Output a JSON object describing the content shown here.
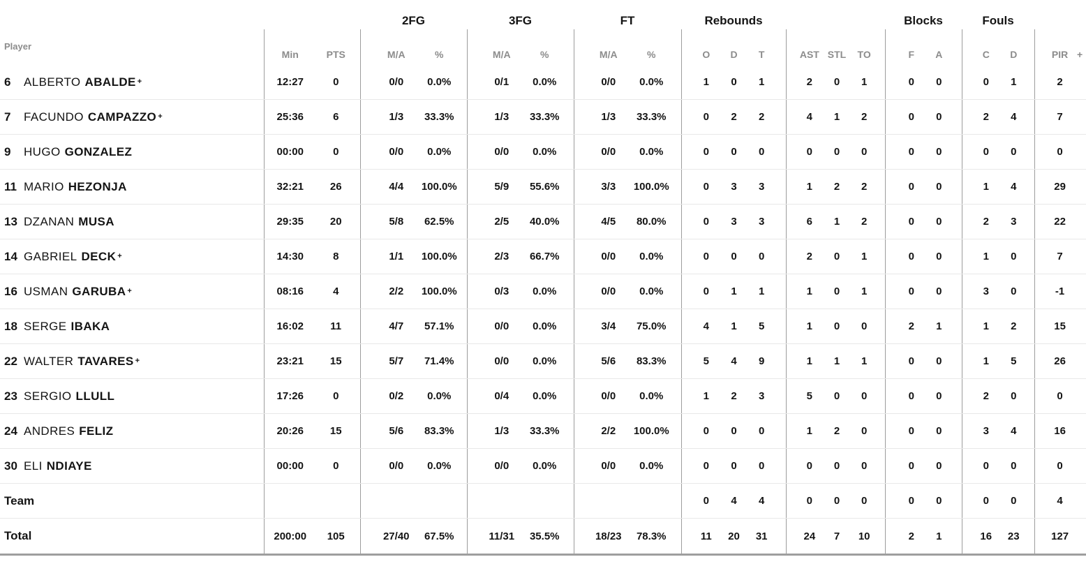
{
  "table": {
    "header": {
      "player_label": "Player",
      "group_labels": [
        "",
        "2FG",
        "3FG",
        "FT",
        "Rebounds",
        "",
        "Blocks",
        "Fouls",
        ""
      ],
      "columns": [
        "Min",
        "PTS",
        "M/A",
        "%",
        "M/A",
        "%",
        "M/A",
        "%",
        "O",
        "D",
        "T",
        "AST",
        "STL",
        "TO",
        "F",
        "A",
        "C",
        "D",
        "PIR",
        "+"
      ]
    },
    "starter_mark": "+",
    "rows": [
      {
        "type": "player",
        "number": "6",
        "first": "ALBERTO",
        "last": "ABALDE",
        "starter": true,
        "stats": [
          "12:27",
          "0",
          "0/0",
          "0.0%",
          "0/1",
          "0.0%",
          "0/0",
          "0.0%",
          "1",
          "0",
          "1",
          "2",
          "0",
          "1",
          "0",
          "0",
          "0",
          "1",
          "2",
          ""
        ]
      },
      {
        "type": "player",
        "number": "7",
        "first": "FACUNDO",
        "last": "CAMPAZZO",
        "starter": true,
        "stats": [
          "25:36",
          "6",
          "1/3",
          "33.3%",
          "1/3",
          "33.3%",
          "1/3",
          "33.3%",
          "0",
          "2",
          "2",
          "4",
          "1",
          "2",
          "0",
          "0",
          "2",
          "4",
          "7",
          ""
        ]
      },
      {
        "type": "player",
        "number": "9",
        "first": "HUGO",
        "last": "GONZALEZ",
        "starter": false,
        "stats": [
          "00:00",
          "0",
          "0/0",
          "0.0%",
          "0/0",
          "0.0%",
          "0/0",
          "0.0%",
          "0",
          "0",
          "0",
          "0",
          "0",
          "0",
          "0",
          "0",
          "0",
          "0",
          "0",
          ""
        ]
      },
      {
        "type": "player",
        "number": "11",
        "first": "MARIO",
        "last": "HEZONJA",
        "starter": false,
        "stats": [
          "32:21",
          "26",
          "4/4",
          "100.0%",
          "5/9",
          "55.6%",
          "3/3",
          "100.0%",
          "0",
          "3",
          "3",
          "1",
          "2",
          "2",
          "0",
          "0",
          "1",
          "4",
          "29",
          ""
        ]
      },
      {
        "type": "player",
        "number": "13",
        "first": "DZANAN",
        "last": "MUSA",
        "starter": false,
        "stats": [
          "29:35",
          "20",
          "5/8",
          "62.5%",
          "2/5",
          "40.0%",
          "4/5",
          "80.0%",
          "0",
          "3",
          "3",
          "6",
          "1",
          "2",
          "0",
          "0",
          "2",
          "3",
          "22",
          ""
        ]
      },
      {
        "type": "player",
        "number": "14",
        "first": "GABRIEL",
        "last": "DECK",
        "starter": true,
        "stats": [
          "14:30",
          "8",
          "1/1",
          "100.0%",
          "2/3",
          "66.7%",
          "0/0",
          "0.0%",
          "0",
          "0",
          "0",
          "2",
          "0",
          "1",
          "0",
          "0",
          "1",
          "0",
          "7",
          ""
        ]
      },
      {
        "type": "player",
        "number": "16",
        "first": "USMAN",
        "last": "GARUBA",
        "starter": true,
        "stats": [
          "08:16",
          "4",
          "2/2",
          "100.0%",
          "0/3",
          "0.0%",
          "0/0",
          "0.0%",
          "0",
          "1",
          "1",
          "1",
          "0",
          "1",
          "0",
          "0",
          "3",
          "0",
          "-1",
          ""
        ]
      },
      {
        "type": "player",
        "number": "18",
        "first": "SERGE",
        "last": "IBAKA",
        "starter": false,
        "stats": [
          "16:02",
          "11",
          "4/7",
          "57.1%",
          "0/0",
          "0.0%",
          "3/4",
          "75.0%",
          "4",
          "1",
          "5",
          "1",
          "0",
          "0",
          "2",
          "1",
          "1",
          "2",
          "15",
          ""
        ]
      },
      {
        "type": "player",
        "number": "22",
        "first": "WALTER",
        "last": "TAVARES",
        "starter": true,
        "stats": [
          "23:21",
          "15",
          "5/7",
          "71.4%",
          "0/0",
          "0.0%",
          "5/6",
          "83.3%",
          "5",
          "4",
          "9",
          "1",
          "1",
          "1",
          "0",
          "0",
          "1",
          "5",
          "26",
          ""
        ]
      },
      {
        "type": "player",
        "number": "23",
        "first": "SERGIO",
        "last": "LLULL",
        "starter": false,
        "stats": [
          "17:26",
          "0",
          "0/2",
          "0.0%",
          "0/4",
          "0.0%",
          "0/0",
          "0.0%",
          "1",
          "2",
          "3",
          "5",
          "0",
          "0",
          "0",
          "0",
          "2",
          "0",
          "0",
          ""
        ]
      },
      {
        "type": "player",
        "number": "24",
        "first": "ANDRES",
        "last": "FELIZ",
        "starter": false,
        "stats": [
          "20:26",
          "15",
          "5/6",
          "83.3%",
          "1/3",
          "33.3%",
          "2/2",
          "100.0%",
          "0",
          "0",
          "0",
          "1",
          "2",
          "0",
          "0",
          "0",
          "3",
          "4",
          "16",
          ""
        ]
      },
      {
        "type": "player",
        "number": "30",
        "first": "ELI",
        "last": "NDIAYE",
        "starter": false,
        "stats": [
          "00:00",
          "0",
          "0/0",
          "0.0%",
          "0/0",
          "0.0%",
          "0/0",
          "0.0%",
          "0",
          "0",
          "0",
          "0",
          "0",
          "0",
          "0",
          "0",
          "0",
          "0",
          "0",
          ""
        ]
      },
      {
        "type": "summary",
        "label": "Team",
        "stats": [
          "",
          "",
          "",
          "",
          "",
          "",
          "",
          "",
          "0",
          "4",
          "4",
          "0",
          "0",
          "0",
          "0",
          "0",
          "0",
          "0",
          "4",
          ""
        ]
      },
      {
        "type": "summary",
        "label": "Total",
        "stats": [
          "200:00",
          "105",
          "27/40",
          "67.5%",
          "11/31",
          "35.5%",
          "18/23",
          "78.3%",
          "11",
          "20",
          "31",
          "24",
          "7",
          "10",
          "2",
          "1",
          "16",
          "23",
          "127",
          ""
        ]
      }
    ]
  },
  "colors": {
    "text": "#141414",
    "muted": "#8c8c8c",
    "divider": "#9c9c9c",
    "row_line": "#e8e8e8",
    "bottom_bar": "#9e9e9e",
    "background": "#ffffff"
  }
}
